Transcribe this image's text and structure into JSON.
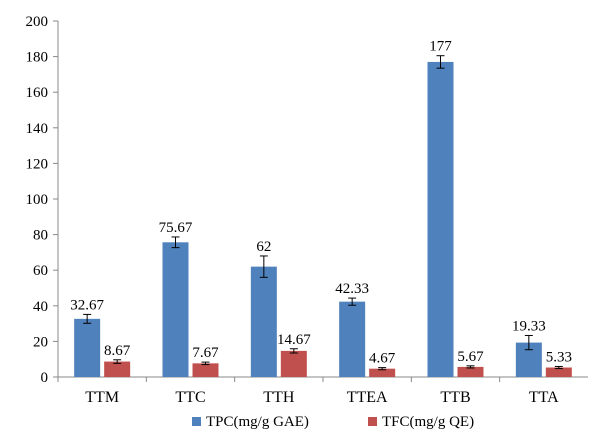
{
  "chart_data": {
    "type": "bar",
    "categories": [
      "TTM",
      "TTC",
      "TTH",
      "TTEA",
      "TTB",
      "TTA"
    ],
    "series": [
      {
        "name": "TPC(mg/g GAE)",
        "color": "#4F81BD",
        "values": [
          32.67,
          75.67,
          62,
          42.33,
          177,
          19.33
        ],
        "labels": [
          "32.67",
          "75.67",
          "62",
          "42.33",
          "177",
          "19.33"
        ],
        "errors": [
          2.5,
          3,
          6,
          2,
          3.5,
          4
        ]
      },
      {
        "name": "TFC(mg/g QE)",
        "color": "#C0504D",
        "values": [
          8.67,
          7.67,
          14.67,
          4.67,
          5.67,
          5.33
        ],
        "labels": [
          "8.67",
          "7.67",
          "14.67",
          "4.67",
          "5.67",
          "5.33"
        ],
        "errors": [
          1,
          0.7,
          1.2,
          0.6,
          0.6,
          0.6
        ]
      }
    ],
    "yticks": [
      "0",
      "20",
      "40",
      "60",
      "80",
      "100",
      "120",
      "140",
      "160",
      "180",
      "200"
    ],
    "ylim": [
      0,
      200
    ],
    "grid": false,
    "legend_position": "bottom"
  }
}
